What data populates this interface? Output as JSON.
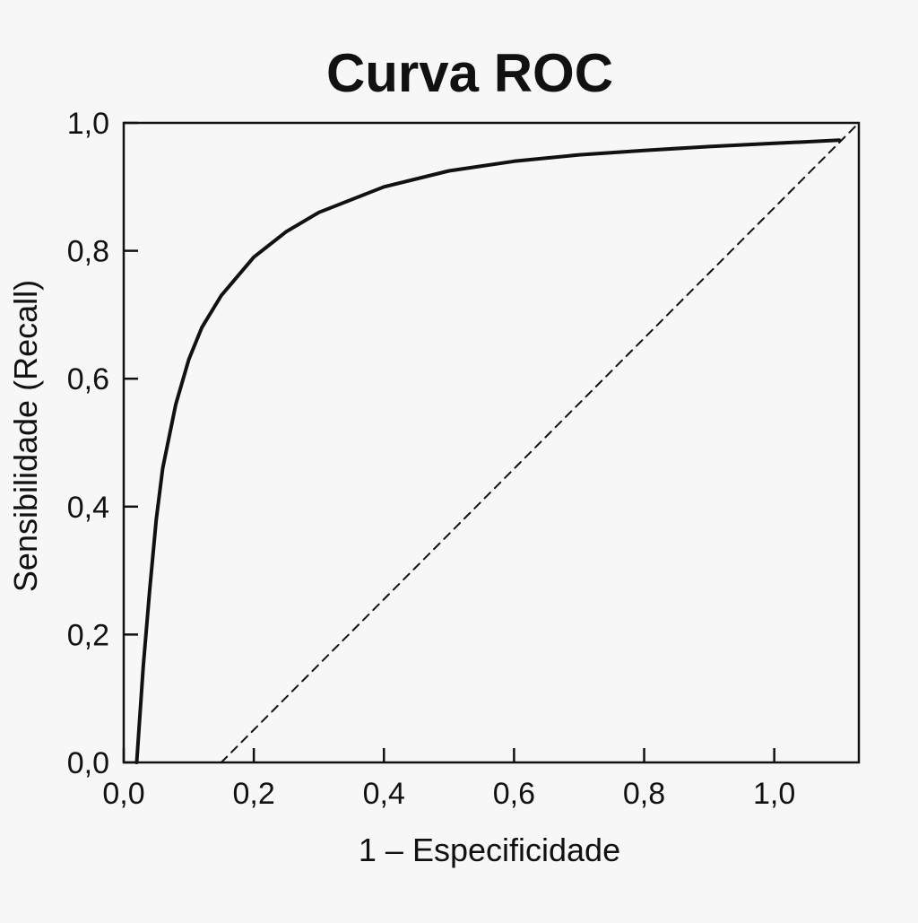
{
  "chart_data": {
    "type": "line",
    "title": "Curva ROC",
    "xlabel": "1 – Especificidade",
    "ylabel": "Sensibilidade (Recall)",
    "xlim": [
      0,
      1.13
    ],
    "ylim": [
      0,
      1.0
    ],
    "x_ticks": [
      "0,0",
      "0,2",
      "0,4",
      "0,6",
      "0,8",
      "1,0"
    ],
    "y_ticks": [
      "0,0",
      "0,2",
      "0,4",
      "0,6",
      "0,8",
      "1,0"
    ],
    "grid": false,
    "legend": "none",
    "series": [
      {
        "style": "solid",
        "color": "#111111",
        "x": [
          0.02,
          0.03,
          0.04,
          0.05,
          0.06,
          0.08,
          0.1,
          0.12,
          0.15,
          0.2,
          0.25,
          0.3,
          0.4,
          0.5,
          0.6,
          0.7,
          0.8,
          0.9,
          1.0,
          1.1
        ],
        "y": [
          0.0,
          0.15,
          0.27,
          0.38,
          0.46,
          0.56,
          0.63,
          0.68,
          0.73,
          0.79,
          0.83,
          0.86,
          0.9,
          0.925,
          0.94,
          0.95,
          0.957,
          0.963,
          0.968,
          0.973
        ]
      },
      {
        "style": "dashed",
        "color": "#111111",
        "x": [
          0.15,
          1.13
        ],
        "y": [
          0.0,
          1.0
        ]
      }
    ]
  }
}
